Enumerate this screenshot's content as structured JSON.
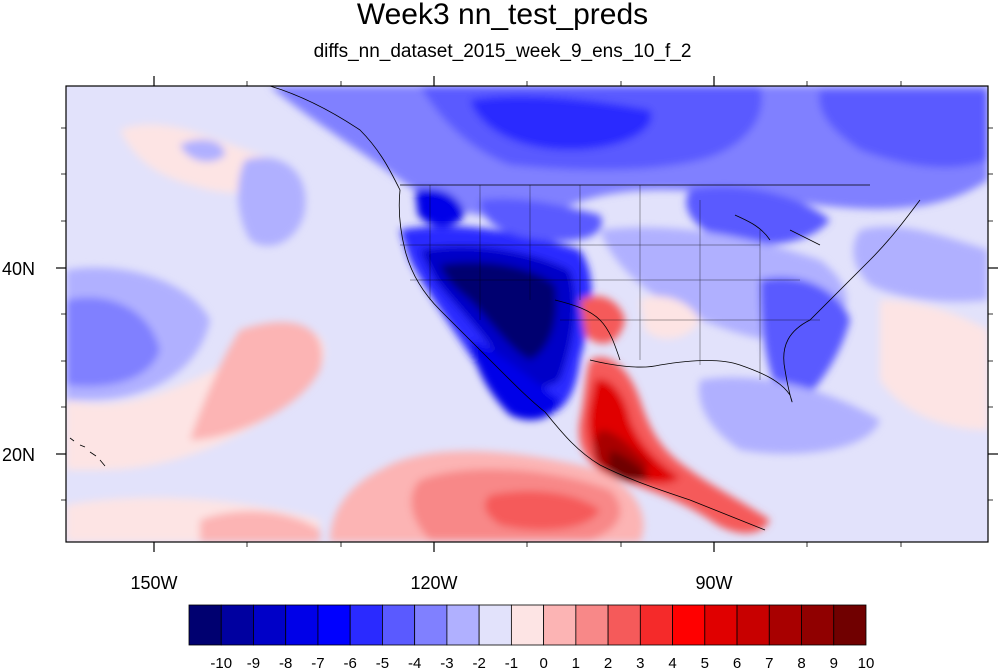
{
  "title": "Week3 nn_test_preds",
  "subtitle": "diffs_nn_dataset_2015_week_9_ens_10_f_2",
  "lon_labels": [
    "150W",
    "120W",
    "90W"
  ],
  "lat_labels": [
    "40N",
    "20N"
  ],
  "colorbar": {
    "labels": [
      "-10",
      "-9",
      "-8",
      "-7",
      "-6",
      "-5",
      "-4",
      "-3",
      "-2",
      "-1",
      "0",
      "1",
      "2",
      "3",
      "4",
      "5",
      "6",
      "7",
      "8",
      "9",
      "10"
    ],
    "colors": [
      "#000070",
      "#0000a0",
      "#0000c8",
      "#0000e8",
      "#0000ff",
      "#2a2aff",
      "#5a5aff",
      "#8080ff",
      "#b0b0ff",
      "#e2e2fb",
      "#fde4e4",
      "#fcb4b4",
      "#f88888",
      "#f55a5a",
      "#f52a2a",
      "#ff0000",
      "#e00000",
      "#c80000",
      "#a80000",
      "#900000",
      "#700000"
    ]
  }
}
